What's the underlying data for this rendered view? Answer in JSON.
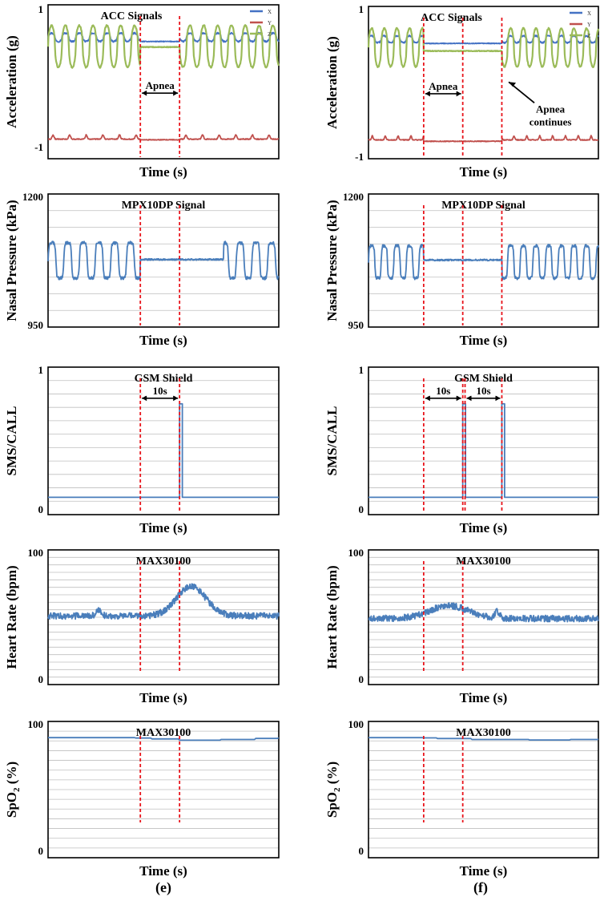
{
  "figure": {
    "panel_labels": [
      "(e)",
      "(f)"
    ]
  },
  "colors": {
    "x": "#4472C4",
    "y": "#C0504D",
    "z": "#9BBB59",
    "signal": "#4A7EBB",
    "marker": "#E8141B",
    "grid": "#BFBFBF",
    "frame": "#000000"
  },
  "chart_data": [
    {
      "id": "e_acc",
      "type": "line",
      "title": "ACC Signals",
      "xlabel": "Time (s)",
      "ylabel": "Acceleration (g)",
      "ymin_label": "-1",
      "ymax_label": "1",
      "ylim": [
        -1,
        1
      ],
      "legend": [
        "X",
        "Y",
        "Z"
      ],
      "legend_position": "top-right",
      "grid": false,
      "apnea_window": [
        0.4,
        0.57
      ],
      "markers": [
        0.4,
        0.57
      ],
      "annotations": [
        {
          "text": "Apnea",
          "type": "span",
          "from": 0.4,
          "to": 0.57,
          "y": -0.22
        }
      ],
      "series": [
        {
          "name": "X",
          "key": "x",
          "pattern": "osc",
          "base": 0.58,
          "amp": 0.06,
          "period": 0.06,
          "apnea_value": 0.52,
          "after_value": 0.53
        },
        {
          "name": "Y",
          "key": "y",
          "pattern": "bump",
          "base": -0.88,
          "amp": 0.06,
          "period": 0.072,
          "apnea_value": -0.89,
          "after_value": -0.88
        },
        {
          "name": "Z",
          "key": "z",
          "pattern": "osc",
          "base": 0.45,
          "amp": 0.3,
          "period": 0.06,
          "apnea_value": 0.44,
          "after_value": 0.45
        }
      ]
    },
    {
      "id": "f_acc",
      "type": "line",
      "title": "ACC Signals",
      "xlabel": "Time (s)",
      "ylabel": "Acceleration (g)",
      "ymin_label": "-1",
      "ymax_label": "1",
      "ylim": [
        -1,
        1
      ],
      "legend": [
        "X",
        "Y",
        "Z"
      ],
      "legend_position": "top-right",
      "grid": false,
      "apnea_window": [
        0.24,
        0.58
      ],
      "markers": [
        0.24,
        0.41,
        0.58
      ],
      "annotations": [
        {
          "text": "Apnea",
          "type": "span",
          "from": 0.24,
          "to": 0.41,
          "y": -0.22
        },
        {
          "text": "Apnea",
          "type": "arrow-note",
          "text2": "continues",
          "x": 0.61,
          "y": -0.05
        }
      ],
      "series": [
        {
          "name": "X",
          "key": "x",
          "pattern": "osc",
          "base": 0.57,
          "amp": 0.05,
          "period": 0.055,
          "apnea_value": 0.51,
          "after_value": 0.5
        },
        {
          "name": "Y",
          "key": "y",
          "pattern": "bump",
          "base": -0.89,
          "amp": 0.06,
          "period": 0.056,
          "apnea_value": -0.91,
          "after_value": -0.9
        },
        {
          "name": "Z",
          "key": "z",
          "pattern": "osc",
          "base": 0.45,
          "amp": 0.28,
          "period": 0.055,
          "apnea_value": 0.4,
          "after_value": 0.38
        }
      ]
    },
    {
      "id": "e_mpx",
      "type": "line",
      "title": "MPX10DP Signal",
      "xlabel": "Time (s)",
      "ylabel": "Nasal Pressure (kPa)",
      "ymin_label": "950",
      "ymax_label": "1200",
      "ylim": [
        950,
        1200
      ],
      "grid": true,
      "grid_lines": 7,
      "apnea_window": [
        0.4,
        0.57
      ],
      "markers": [
        0.4,
        0.57
      ],
      "series": [
        {
          "name": "pressure",
          "key": "signal",
          "pattern": "square",
          "base": 1075,
          "amp": 35,
          "period": 0.068,
          "apnea_value": 1077,
          "apnea_end": 0.76
        }
      ]
    },
    {
      "id": "f_mpx",
      "type": "line",
      "title": "MPX10DP Signal",
      "xlabel": "Time (s)",
      "ylabel": "Nasal Pressure (kPa)",
      "ymin_label": "950",
      "ymax_label": "1200",
      "ylim": [
        950,
        1200
      ],
      "grid": true,
      "grid_lines": 7,
      "apnea_window": [
        0.24,
        0.58
      ],
      "markers": [
        0.24,
        0.41,
        0.58
      ],
      "series": [
        {
          "name": "pressure",
          "key": "signal",
          "pattern": "square",
          "base": 1072,
          "amp": 32,
          "period": 0.055,
          "apnea_value": 1076,
          "apnea_end": 0.58
        }
      ]
    },
    {
      "id": "e_gsm",
      "type": "line",
      "title": "GSM Shield",
      "xlabel": "Time (s)",
      "ylabel": "SMS/CALL",
      "ymin_label": "0",
      "ymax_label": "1",
      "ylim": [
        0,
        1
      ],
      "grid": true,
      "grid_lines": 10,
      "markers": [
        0.4,
        0.57
      ],
      "annotations": [
        {
          "text": "10s",
          "type": "span",
          "from": 0.4,
          "to": 0.57,
          "y": 0.8
        }
      ],
      "series": [
        {
          "name": "trigger",
          "key": "signal",
          "pattern": "pulses",
          "base": 0.09,
          "pulse_value": 0.76,
          "pulses": [
            0.57
          ]
        }
      ]
    },
    {
      "id": "f_gsm",
      "type": "line",
      "title": "GSM Shield",
      "xlabel": "Time (s)",
      "ylabel": "SMS/CALL",
      "ymin_label": "0",
      "ymax_label": "1",
      "ylim": [
        0,
        1
      ],
      "grid": true,
      "grid_lines": 10,
      "markers": [
        0.24,
        0.41,
        0.42,
        0.58
      ],
      "annotations": [
        {
          "text": "10s",
          "type": "span",
          "from": 0.24,
          "to": 0.41,
          "y": 0.8
        },
        {
          "text": "10s",
          "type": "span",
          "from": 0.42,
          "to": 0.58,
          "y": 0.8
        }
      ],
      "series": [
        {
          "name": "trigger",
          "key": "signal",
          "pattern": "pulses",
          "base": 0.09,
          "pulse_value": 0.76,
          "pulses": [
            0.41,
            0.58
          ]
        }
      ]
    },
    {
      "id": "e_hr",
      "type": "line",
      "title": "MAX30100",
      "xlabel": "Time (s)",
      "ylabel": "Heart Rate (bpm)",
      "ymin_label": "0",
      "ymax_label": "100",
      "ylim": [
        0,
        100
      ],
      "grid": true,
      "grid_lines": 17,
      "markers": [
        0.4,
        0.57
      ],
      "series": [
        {
          "name": "heart_rate",
          "key": "signal",
          "pattern": "hr",
          "base": 51,
          "noise": 2.5,
          "peak_center": 0.62,
          "peak_width": 0.09,
          "peak_height": 23,
          "bump_at": 0.22,
          "bump_height": 5
        }
      ]
    },
    {
      "id": "f_hr",
      "type": "line",
      "title": "MAX30100",
      "xlabel": "Time (s)",
      "ylabel": "Heart Rate (bpm)",
      "ymin_label": "0",
      "ymax_label": "100",
      "ylim": [
        0,
        100
      ],
      "grid": true,
      "grid_lines": 17,
      "markers": [
        0.24,
        0.41
      ],
      "series": [
        {
          "name": "heart_rate",
          "key": "signal",
          "pattern": "hr",
          "base": 49,
          "noise": 2.5,
          "peak_center": 0.35,
          "peak_width": 0.12,
          "peak_height": 10,
          "bump_at": 0.56,
          "bump_height": 5
        }
      ]
    },
    {
      "id": "e_spo2",
      "type": "line",
      "title": "MAX30100",
      "xlabel": "Time (s)",
      "ylabel": "SpO2 (%)",
      "ymin_label": "0",
      "ymax_label": "100",
      "ylim": [
        0,
        100
      ],
      "grid": true,
      "grid_lines": 13,
      "markers": [
        0.4,
        0.57
      ],
      "series": [
        {
          "name": "spo2",
          "key": "signal",
          "pattern": "steps",
          "steps": [
            [
              0.0,
              90
            ],
            [
              0.38,
              89.7
            ],
            [
              0.45,
              89
            ],
            [
              0.57,
              88
            ],
            [
              0.75,
              88.6
            ],
            [
              0.9,
              89.4
            ],
            [
              1.0,
              90
            ]
          ]
        }
      ]
    },
    {
      "id": "f_spo2",
      "type": "line",
      "title": "MAX30100",
      "xlabel": "Time (s)",
      "ylabel": "SpO2 (%)",
      "ymin_label": "0",
      "ymax_label": "100",
      "ylim": [
        0,
        100
      ],
      "grid": true,
      "grid_lines": 13,
      "markers": [
        0.24,
        0.41
      ],
      "series": [
        {
          "name": "spo2",
          "key": "signal",
          "pattern": "steps",
          "steps": [
            [
              0.0,
              90
            ],
            [
              0.24,
              89.8
            ],
            [
              0.3,
              89.3
            ],
            [
              0.45,
              88.6
            ],
            [
              0.7,
              88.2
            ],
            [
              0.88,
              88.6
            ],
            [
              1.0,
              88.8
            ]
          ]
        }
      ]
    }
  ]
}
